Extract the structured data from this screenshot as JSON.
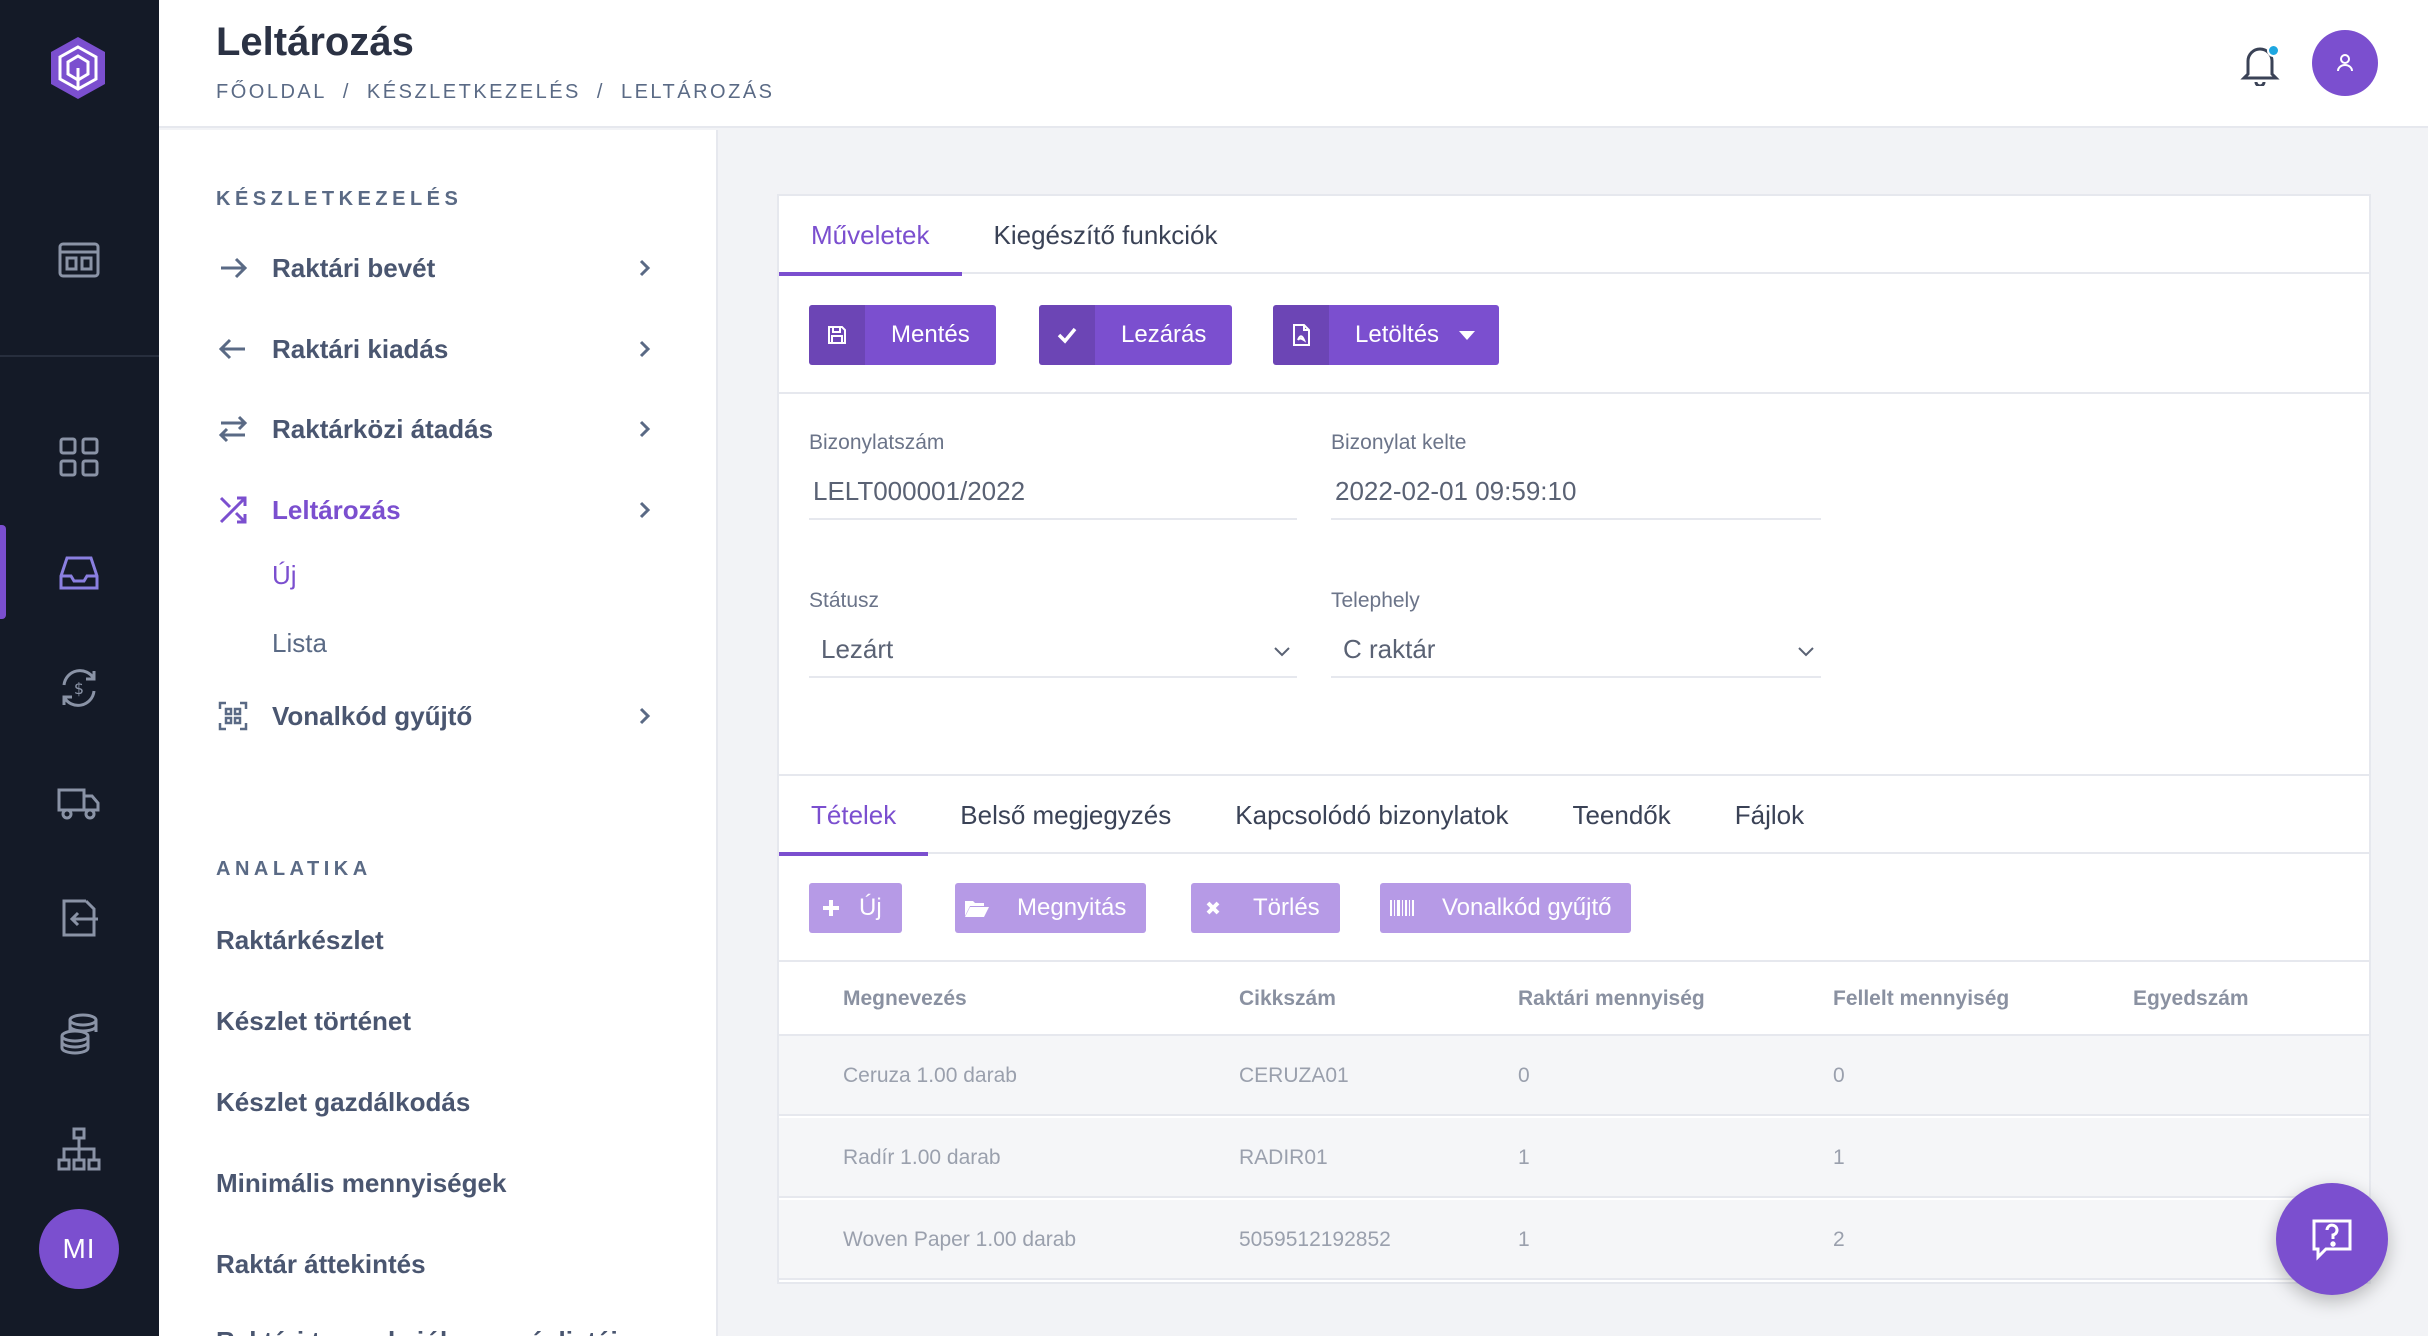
{
  "app": {
    "title": "Leltározás",
    "breadcrumb": [
      "FŐOLDAL",
      "KÉSZLETKEZELÉS",
      "LELTÁROZÁS"
    ],
    "user_initials": "MI"
  },
  "rail": {
    "icons": [
      "logo-icon",
      "dashboard-icon",
      "apps-grid-icon",
      "inbox-icon",
      "currency-exchange-icon",
      "truck-icon",
      "import-icon",
      "coins-icon",
      "hierarchy-icon"
    ],
    "active": "inbox-icon"
  },
  "subnav": {
    "section1_title": "KÉSZLETKEZELÉS",
    "items": [
      {
        "label": "Raktári bevét",
        "icon": "arrow-right-icon"
      },
      {
        "label": "Raktári kiadás",
        "icon": "arrow-left-icon"
      },
      {
        "label": "Raktárközi átadás",
        "icon": "swap-arrows-icon"
      },
      {
        "label": "Leltározás",
        "icon": "shuffle-icon",
        "active": true
      },
      {
        "label": "Vonalkód gyűjtő",
        "icon": "qr-scan-icon"
      }
    ],
    "subitems": [
      {
        "label": "Új",
        "active": true
      },
      {
        "label": "Lista"
      }
    ],
    "section2_title": "ANALATIKA",
    "analytics": [
      "Raktárkészlet",
      "Készlet történet",
      "Készlet gazdálkodás",
      "Minimális mennyiségek",
      "Raktár áttekintés",
      "Raktári tranzakciók mozgáslistája"
    ]
  },
  "card": {
    "tabs": [
      {
        "label": "Műveletek",
        "active": true
      },
      {
        "label": "Kiegészítő funkciók"
      }
    ],
    "buttons": {
      "save": "Mentés",
      "close": "Lezárás",
      "download": "Letöltés"
    },
    "fields": {
      "doc_number_label": "Bizonylatszám",
      "doc_number_value": "LELT000001/2022",
      "doc_date_label": "Bizonylat kelte",
      "doc_date_value": "2022-02-01 09:59:10",
      "status_label": "Státusz",
      "status_value": "Lezárt",
      "site_label": "Telephely",
      "site_value": "C raktár"
    },
    "tabs2": [
      {
        "label": "Tételek",
        "active": true
      },
      {
        "label": "Belső megjegyzés"
      },
      {
        "label": "Kapcsolódó bizonylatok"
      },
      {
        "label": "Teendők"
      },
      {
        "label": "Fájlok"
      }
    ],
    "item_buttons": {
      "new": "Új",
      "open": "Megnyitás",
      "delete": "Törlés",
      "barcode": "Vonalkód gyűjtő"
    },
    "table": {
      "columns": [
        "Megnevezés",
        "Cikkszám",
        "Raktári mennyiség",
        "Fellelt mennyiség",
        "Egyedszám"
      ],
      "rows": [
        [
          "Ceruza 1.00 darab",
          "CERUZA01",
          "0",
          "0",
          ""
        ],
        [
          "Radír 1.00 darab",
          "RADIR01",
          "1",
          "1",
          ""
        ],
        [
          "Woven Paper 1.00 darab",
          "5059512192852",
          "1",
          "2",
          ""
        ]
      ]
    }
  },
  "colors": {
    "accent": "#7b4fcf",
    "accent_light": "#b69ae6",
    "rail_bg": "#141a27",
    "notification_dot": "#1ea7e1"
  }
}
